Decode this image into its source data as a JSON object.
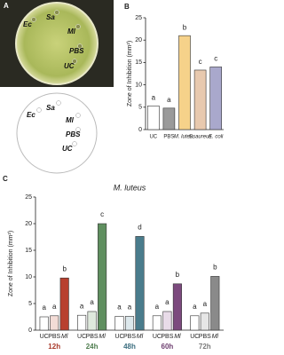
{
  "panel_a": {
    "label": "A",
    "plate_labels": [
      "Ec",
      "Sa",
      "Ml",
      "PBS",
      "UC"
    ]
  },
  "chart_data": [
    {
      "type": "bar",
      "panel": "B",
      "ylabel": "Zone of Inhibition (mm²)",
      "categories": [
        "UC",
        "PBS",
        "M. luteus",
        "S. aureus",
        "E. coli"
      ],
      "values": [
        5.3,
        4.8,
        21,
        13.3,
        14
      ],
      "colors": [
        "#ffffff",
        "#9a9a9a",
        "#f6d28a",
        "#e8c9ae",
        "#a9a8cc"
      ],
      "letters": [
        "a",
        "a",
        "b",
        "c",
        "c"
      ],
      "ylim": [
        0,
        25
      ],
      "yticks": [
        0,
        5,
        10,
        15,
        20,
        25
      ]
    },
    {
      "type": "grouped-bar",
      "panel": "C",
      "title": "M. luteus",
      "ylabel": "Zone of Inhibition (mm²)",
      "categories": [
        "12h",
        "24h",
        "48h",
        "60h",
        "72h"
      ],
      "category_colors": [
        "#a8392a",
        "#4f7d4f",
        "#3d6f80",
        "#6e3f70",
        "#7a7a7a"
      ],
      "series": [
        {
          "name": "UC",
          "values": [
            2.5,
            2.8,
            2.6,
            2.7,
            2.7
          ],
          "colors": [
            "#ffffff",
            "#ffffff",
            "#ffffff",
            "#ffffff",
            "#ffffff"
          ],
          "letters": [
            "a",
            "a",
            "a",
            "a",
            "a"
          ]
        },
        {
          "name": "PBS",
          "values": [
            2.7,
            3.5,
            2.6,
            3.5,
            3.2
          ],
          "colors": [
            "#f3dcd6",
            "#dfe9dd",
            "#dde8ec",
            "#e8dbe8",
            "#e6e6e6"
          ],
          "letters": [
            "a",
            "a",
            "a",
            "a",
            "a"
          ]
        },
        {
          "name": "Ml",
          "values": [
            9.8,
            20,
            17.6,
            8.7,
            10.1
          ],
          "colors": [
            "#b8402f",
            "#5f8f5f",
            "#4a7c8c",
            "#7c4a7e",
            "#8a8a8a"
          ],
          "letters": [
            "b",
            "c",
            "d",
            "b",
            "b"
          ]
        }
      ],
      "ylim": [
        0,
        25
      ],
      "yticks": [
        0,
        5,
        10,
        15,
        20,
        25
      ]
    }
  ]
}
